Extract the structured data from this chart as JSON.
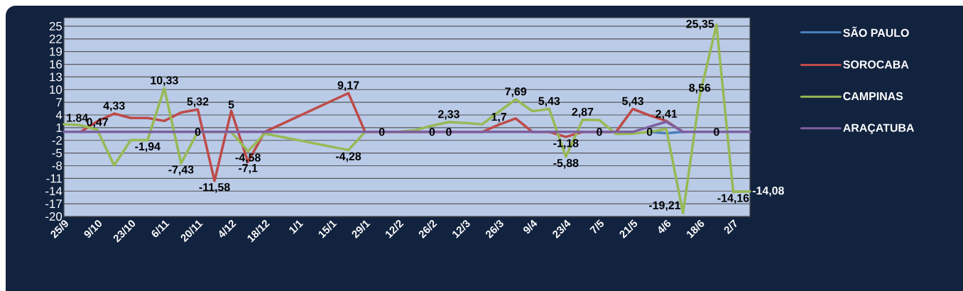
{
  "chart_data": {
    "type": "line",
    "categories": [
      "25/9",
      null,
      "9/10",
      null,
      "23/10",
      null,
      "6/11",
      null,
      "20/11",
      null,
      "4/12",
      null,
      "18/12",
      null,
      "1/1",
      null,
      "15/1",
      null,
      "29/1",
      null,
      "12/2",
      null,
      "26/2",
      null,
      "12/3",
      null,
      "26/3",
      null,
      "9/4",
      null,
      "23/4",
      null,
      "7/5",
      null,
      "21/5",
      null,
      "4/6",
      null,
      "18/6",
      null,
      "2/7",
      null
    ],
    "series": [
      {
        "name": "SÃO PAULO",
        "color": "#4a7ebb",
        "values": [
          null,
          null,
          null,
          null,
          null,
          null,
          null,
          null,
          null,
          null,
          null,
          null,
          null,
          null,
          null,
          null,
          null,
          null,
          null,
          null,
          null,
          null,
          null,
          null,
          null,
          null,
          null,
          null,
          null,
          null,
          null,
          null,
          null,
          null,
          null,
          0,
          -0.3,
          0,
          null,
          null,
          null,
          null
        ]
      },
      {
        "name": "SOROCABA",
        "color": "#be4b48",
        "values": [
          null,
          0,
          2.5,
          4.33,
          3.3,
          3.3,
          2.6,
          4.6,
          5.32,
          -11.58,
          5,
          -7.1,
          0,
          null,
          null,
          null,
          null,
          9.17,
          0,
          null,
          null,
          null,
          null,
          null,
          null,
          0,
          1.7,
          3.2,
          0,
          0,
          -1.18,
          0,
          null,
          0,
          5.43,
          3.9,
          2.6,
          0,
          null,
          null,
          null,
          null
        ],
        "value_labels": [
          null,
          null,
          null,
          "4,33",
          null,
          null,
          null,
          null,
          "5,32",
          "-11,58",
          "5",
          "-7,1",
          null,
          null,
          null,
          null,
          null,
          "9,17",
          null,
          null,
          null,
          null,
          null,
          null,
          null,
          null,
          "1,7",
          null,
          null,
          null,
          "-1,18",
          null,
          null,
          null,
          "5,43",
          null,
          null,
          null,
          null,
          null,
          null,
          null
        ]
      },
      {
        "name": "CAMPINAS",
        "color": "#98b954",
        "values": [
          1.84,
          1.6,
          0.47,
          -7.9,
          -1.9,
          -1.94,
          10.33,
          -7.43,
          0,
          0,
          0,
          -4.58,
          -0.4,
          null,
          null,
          null,
          null,
          -4.28,
          0,
          0,
          0,
          0.4,
          1.5,
          2.33,
          2.1,
          1.8,
          4.8,
          7.69,
          4.9,
          5.43,
          -5.88,
          2.87,
          2.8,
          -0.5,
          -0.4,
          0,
          0.7,
          -19.21,
          8.56,
          25.35,
          -14.16,
          -14.08
        ],
        "value_labels": [
          "1.84",
          null,
          "0,47",
          null,
          null,
          "-1,94",
          "10,33",
          "-7,43",
          null,
          null,
          null,
          "-4,58",
          null,
          null,
          null,
          null,
          null,
          "-4,28",
          null,
          null,
          null,
          null,
          null,
          "2,33",
          null,
          null,
          null,
          "7,69",
          null,
          "5,43",
          "-5,88",
          "2,87",
          null,
          null,
          null,
          "0",
          null,
          "-19,21",
          "8,56",
          "25,35",
          "-14,16",
          "-14,08"
        ]
      },
      {
        "name": "ARAÇATUBA",
        "color": "#7d60a0",
        "values": [
          0,
          0,
          0,
          0,
          0,
          0,
          0,
          0,
          0,
          0,
          0,
          0,
          0,
          0,
          0,
          0,
          0,
          0,
          0,
          0,
          0,
          0,
          0,
          0,
          0,
          0,
          0,
          0,
          0,
          0,
          0,
          0,
          0,
          0,
          0,
          1.2,
          2.41,
          0,
          0,
          0,
          0,
          0
        ],
        "value_labels": [
          null,
          null,
          null,
          null,
          null,
          null,
          null,
          null,
          "0",
          null,
          null,
          null,
          null,
          null,
          null,
          null,
          null,
          null,
          null,
          "0",
          null,
          null,
          "0",
          "0",
          null,
          null,
          null,
          null,
          null,
          null,
          null,
          null,
          "0",
          null,
          null,
          null,
          "2,41",
          null,
          null,
          "0",
          null,
          null
        ]
      }
    ],
    "ylim": [
      -20,
      27
    ],
    "yticks": [
      -20,
      -17,
      -14,
      -11,
      -8,
      -5,
      -2,
      1,
      4,
      7,
      10,
      13,
      16,
      19,
      22,
      25
    ],
    "grid": "y",
    "legend": "right"
  }
}
